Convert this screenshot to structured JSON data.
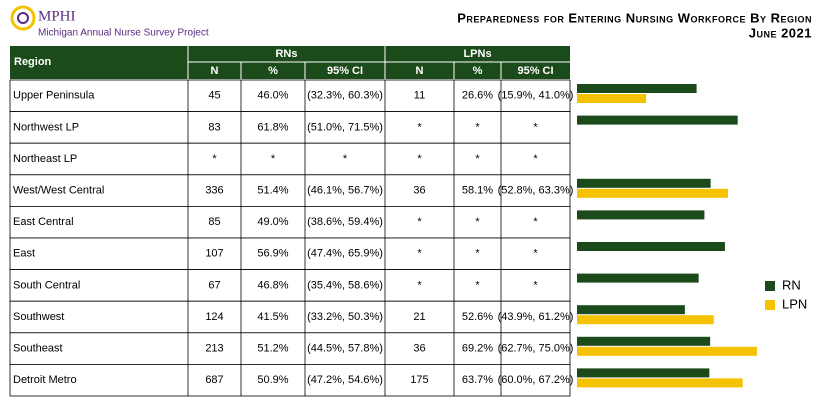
{
  "logo": {
    "name": "MPHI",
    "project": "Michigan Annual Nurse Survey Project"
  },
  "chart_data": {
    "type": "bar",
    "orientation": "horizontal",
    "title": "Preparedness for Entering Nursing Workforce By Region",
    "subtitle": "June 2021",
    "categories": [
      "Upper Peninsula",
      "Northwest LP",
      "Northeast LP",
      "West/West Central",
      "East Central",
      "East",
      "South Central",
      "Southwest",
      "Southeast",
      "Detroit Metro"
    ],
    "series": [
      {
        "name": "RN",
        "color": "#1b4a1b",
        "values": [
          46.0,
          61.8,
          null,
          51.4,
          49.0,
          56.9,
          46.8,
          41.5,
          51.2,
          50.9
        ],
        "value_labels": [
          "46.0%",
          "61.8%",
          "*",
          "51.4%",
          "49.0%",
          "56.9%",
          "46.8%",
          "41.5%",
          "51.2%",
          "50.9%"
        ]
      },
      {
        "name": "LPN",
        "color": "#f5c200",
        "values": [
          26.6,
          null,
          null,
          58.1,
          null,
          null,
          null,
          52.6,
          69.2,
          63.7
        ],
        "value_labels": [
          "26.6%",
          "*",
          "*",
          "58.1%",
          "*",
          "*",
          "*",
          "52.6%",
          "69.2%",
          "63.7%"
        ]
      }
    ],
    "xlim": [
      0,
      100
    ],
    "legend": "right"
  },
  "table": {
    "header": {
      "region": "Region",
      "rns": "RNs",
      "lpns": "LPNs",
      "sub": [
        "N",
        "%",
        "95% CI",
        "N",
        "%",
        "95% CI"
      ]
    },
    "rows": [
      {
        "rn_n": "45",
        "rn_ci": "(32.3%, 60.3%)",
        "lpn_n": "11",
        "lpn_ci": "(15.9%, 41.0%)"
      },
      {
        "rn_n": "83",
        "rn_ci": "(51.0%, 71.5%)",
        "lpn_n": "*",
        "lpn_ci": "*"
      },
      {
        "rn_n": "*",
        "rn_ci": "*",
        "lpn_n": "*",
        "lpn_ci": "*"
      },
      {
        "rn_n": "336",
        "rn_ci": "(46.1%, 56.7%)",
        "lpn_n": "36",
        "lpn_ci": "(52.8%, 63.3%)"
      },
      {
        "rn_n": "85",
        "rn_ci": "(38.6%, 59.4%)",
        "lpn_n": "*",
        "lpn_ci": "*"
      },
      {
        "rn_n": "107",
        "rn_ci": "(47.4%, 65.9%)",
        "lpn_n": "*",
        "lpn_ci": "*"
      },
      {
        "rn_n": "67",
        "rn_ci": "(35.4%, 58.6%)",
        "lpn_n": "*",
        "lpn_ci": "*"
      },
      {
        "rn_n": "124",
        "rn_ci": "(33.2%, 50.3%)",
        "lpn_n": "21",
        "lpn_ci": "(43.9%, 61.2%)"
      },
      {
        "rn_n": "213",
        "rn_ci": "(44.5%, 57.8%)",
        "lpn_n": "36",
        "lpn_ci": "(62.7%, 75.0%)"
      },
      {
        "rn_n": "687",
        "rn_ci": "(47.2%, 54.6%)",
        "lpn_n": "175",
        "lpn_ci": "(60.0%, 67.2%)"
      }
    ]
  }
}
